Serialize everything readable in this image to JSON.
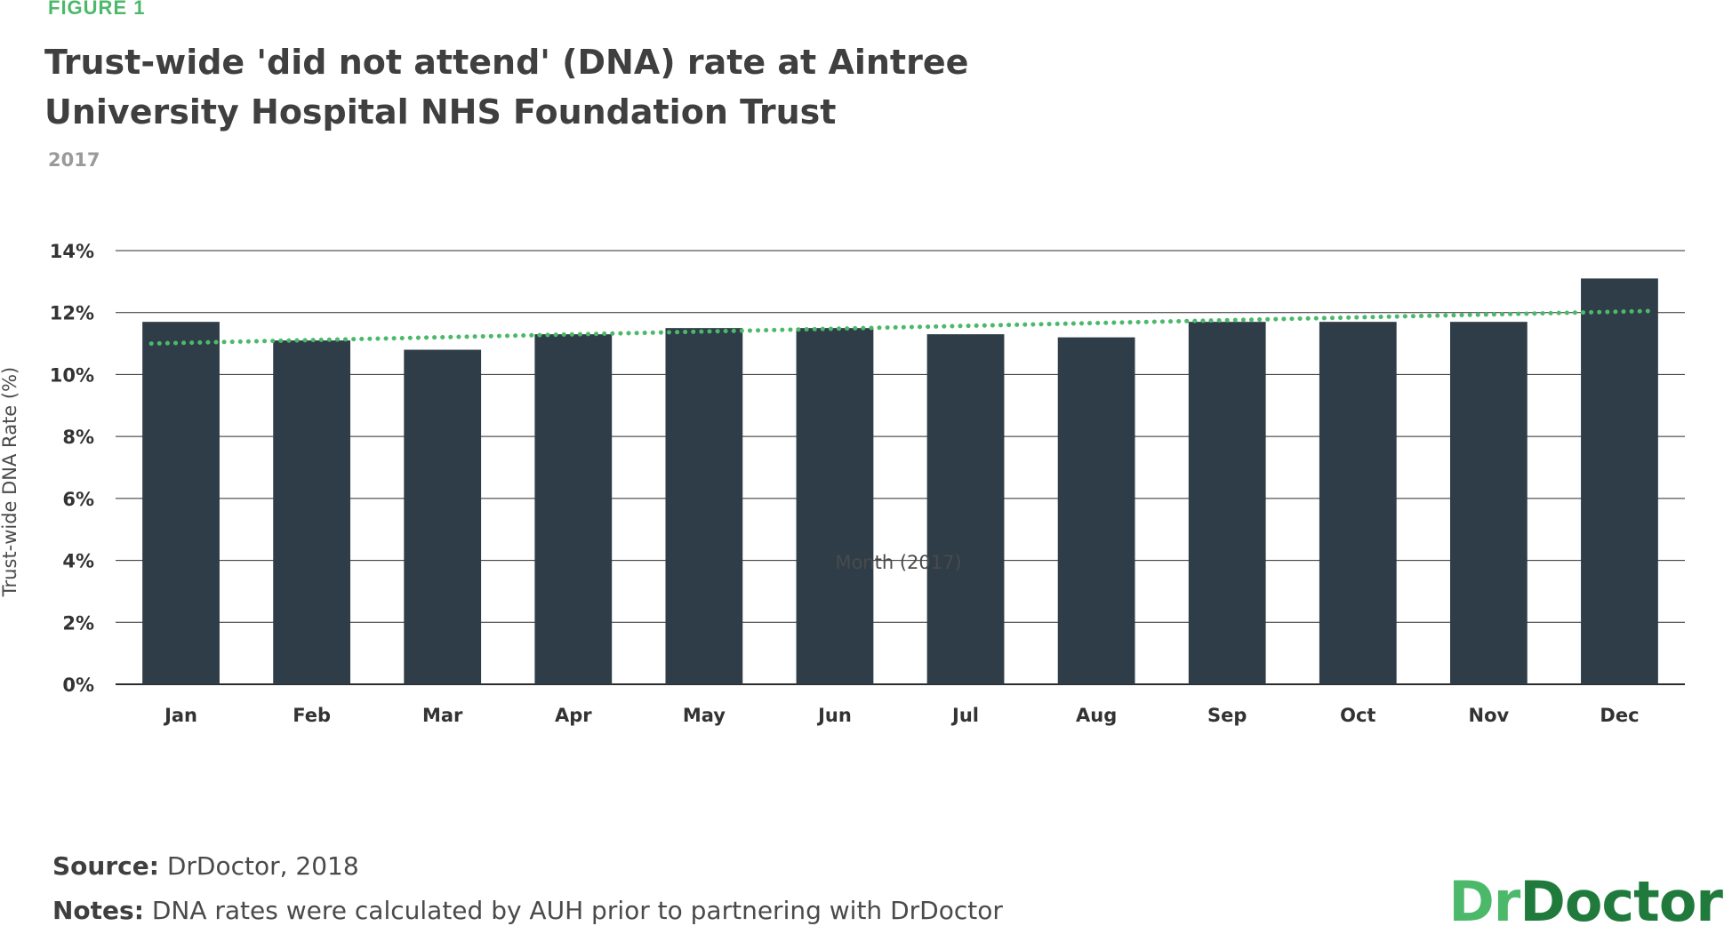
{
  "figure_label": "FIGURE 1",
  "title_line1": "Trust-wide 'did not attend' (DNA) rate at Aintree",
  "title_line2": "University Hospital NHS Foundation Trust",
  "subtitle": "2017",
  "source_label": "Source:",
  "source_text": "DrDoctor, 2018",
  "notes_label": "Notes:",
  "notes_text": "DNA rates were calculated by AUH prior to partnering with DrDoctor",
  "brand": {
    "part1": "Dr",
    "part2": "Doctor"
  },
  "colors": {
    "bar": "#2e3d47",
    "trend": "#4cb96a",
    "grid": "#2b2b2b",
    "figure_label": "#4cb96a",
    "brand_light": "#4cb96a",
    "brand_dark": "#1f7a3c"
  },
  "chart_data": {
    "type": "bar",
    "categories": [
      "Jan",
      "Feb",
      "Mar",
      "Apr",
      "May",
      "Jun",
      "Jul",
      "Aug",
      "Sep",
      "Oct",
      "Nov",
      "Dec"
    ],
    "series": [
      {
        "values": [
          11.7,
          11.1,
          10.8,
          11.3,
          11.5,
          11.5,
          11.3,
          11.2,
          11.7,
          11.7,
          11.7,
          13.1
        ]
      }
    ],
    "trendline": {
      "style": "dotted",
      "start": 11.0,
      "end": 12.05
    },
    "xlabel": "Month (2017)",
    "ylabel": "Trust-wide DNA Rate (%)",
    "ylim": [
      0,
      14
    ],
    "yticks": [
      0,
      2,
      4,
      6,
      8,
      10,
      12,
      14
    ],
    "ytick_labels": [
      "0%",
      "2%",
      "4%",
      "6%",
      "8%",
      "10%",
      "12%",
      "14%"
    ],
    "grid": true,
    "legend": "none"
  }
}
